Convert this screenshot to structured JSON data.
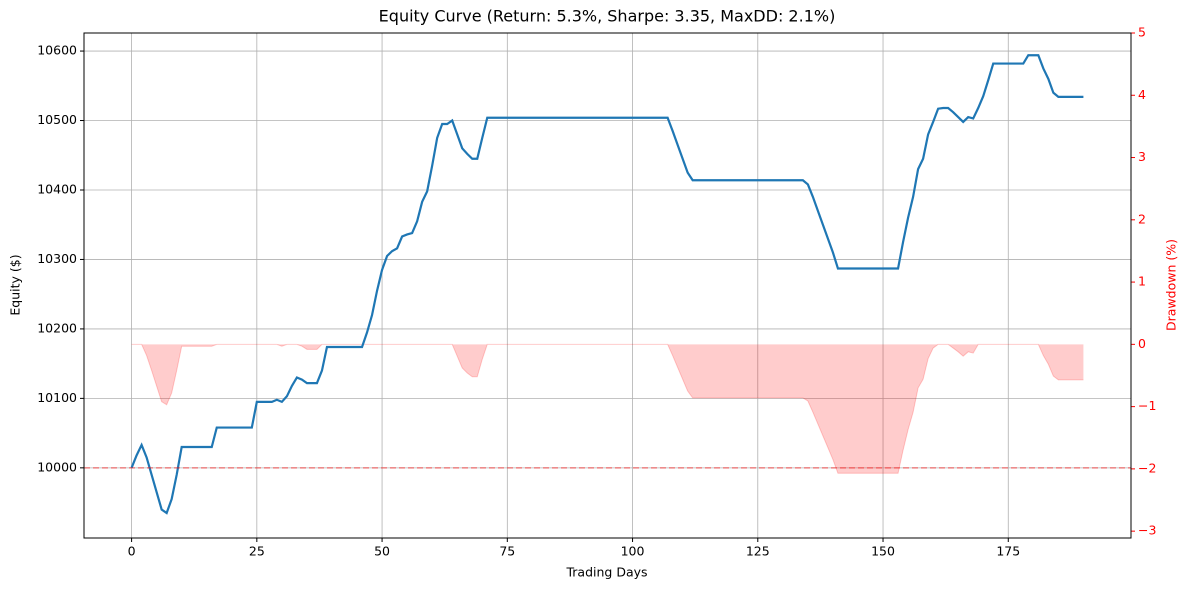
{
  "chart_data": {
    "type": "line",
    "title": "Equity Curve (Return: 5.3%, Sharpe: 3.35, MaxDD: 2.1%)",
    "xlabel": "Trading Days",
    "ylabel": "Equity ($)",
    "y2label": "Drawdown (%)",
    "x": [
      0,
      1,
      2,
      3,
      4,
      5,
      6,
      7,
      8,
      9,
      10,
      11,
      12,
      13,
      14,
      15,
      16,
      17,
      18,
      19,
      20,
      21,
      22,
      23,
      24,
      25,
      26,
      27,
      28,
      29,
      30,
      31,
      32,
      33,
      34,
      35,
      36,
      37,
      38,
      39,
      40,
      41,
      42,
      43,
      44,
      45,
      46,
      47,
      48,
      49,
      50,
      51,
      52,
      53,
      54,
      55,
      56,
      57,
      58,
      59,
      60,
      61,
      62,
      63,
      64,
      65,
      66,
      67,
      68,
      69,
      70,
      71,
      72,
      73,
      74,
      75,
      76,
      77,
      78,
      79,
      80,
      81,
      82,
      83,
      84,
      85,
      86,
      87,
      88,
      89,
      90,
      91,
      92,
      93,
      94,
      95,
      96,
      97,
      98,
      99,
      100,
      101,
      102,
      103,
      104,
      105,
      106,
      107,
      108,
      109,
      110,
      111,
      112,
      113,
      114,
      115,
      116,
      117,
      118,
      119,
      120,
      121,
      122,
      123,
      124,
      125,
      126,
      127,
      128,
      129,
      130,
      131,
      132,
      133,
      134,
      135,
      136,
      137,
      138,
      139,
      140,
      141,
      142,
      143,
      144,
      145,
      146,
      147,
      148,
      149,
      150,
      151,
      152,
      153,
      154,
      155,
      156,
      157,
      158,
      159,
      160,
      161,
      162,
      163,
      164,
      165,
      166,
      167,
      168,
      169,
      170,
      171,
      172,
      173,
      174,
      175,
      176,
      177,
      178,
      179,
      180,
      181,
      182,
      183,
      184,
      185,
      186,
      187,
      188,
      189,
      190
    ],
    "series": [
      {
        "color": "#1f77b4",
        "values": [
          10000,
          10018,
          10033,
          10015,
          9990,
          9965,
          9940,
          9935,
          9955,
          9990,
          10030,
          10030,
          10030,
          10030,
          10030,
          10030,
          10030,
          10058,
          10058,
          10058,
          10058,
          10058,
          10058,
          10058,
          10058,
          10095,
          10095,
          10095,
          10095,
          10098,
          10095,
          10103,
          10118,
          10130,
          10127,
          10122,
          10122,
          10122,
          10140,
          10174,
          10174,
          10174,
          10174,
          10174,
          10174,
          10174,
          10174,
          10195,
          10220,
          10255,
          10285,
          10305,
          10312,
          10316,
          10333,
          10336,
          10338,
          10355,
          10383,
          10398,
          10435,
          10475,
          10495,
          10495,
          10500,
          10480,
          10460,
          10452,
          10445,
          10445,
          10475,
          10504,
          10504,
          10504,
          10504,
          10504,
          10504,
          10504,
          10504,
          10504,
          10504,
          10504,
          10504,
          10504,
          10504,
          10504,
          10504,
          10504,
          10504,
          10504,
          10504,
          10504,
          10504,
          10504,
          10504,
          10504,
          10504,
          10504,
          10504,
          10504,
          10504,
          10504,
          10504,
          10504,
          10504,
          10504,
          10504,
          10504,
          10485,
          10465,
          10445,
          10425,
          10414,
          10414,
          10414,
          10414,
          10414,
          10414,
          10414,
          10414,
          10414,
          10414,
          10414,
          10414,
          10414,
          10414,
          10414,
          10414,
          10414,
          10414,
          10414,
          10414,
          10414,
          10414,
          10414,
          10408,
          10390,
          10370,
          10350,
          10330,
          10310,
          10287,
          10287,
          10287,
          10287,
          10287,
          10287,
          10287,
          10287,
          10287,
          10287,
          10287,
          10287,
          10287,
          10325,
          10360,
          10390,
          10430,
          10445,
          10480,
          10498,
          10517,
          10518,
          10518,
          10512,
          10505,
          10498,
          10505,
          10503,
          10518,
          10535,
          10558,
          10582,
          10582,
          10582,
          10582,
          10582,
          10582,
          10582,
          10594,
          10594,
          10594,
          10575,
          10560,
          10540,
          10534,
          10534,
          10534,
          10534,
          10534,
          10534
        ]
      },
      {
        "color": "#ff0000",
        "axis": "y2",
        "fill": true,
        "values": [
          0,
          0,
          0,
          -0.18,
          -0.42,
          -0.67,
          -0.92,
          -0.97,
          -0.78,
          -0.42,
          -0.03,
          -0.03,
          -0.03,
          -0.03,
          -0.03,
          -0.03,
          -0.03,
          0,
          0,
          0,
          0,
          0,
          0,
          0,
          0,
          0,
          0,
          0,
          0,
          0,
          -0.03,
          0,
          0,
          0,
          -0.03,
          -0.08,
          -0.08,
          -0.08,
          0,
          0,
          0,
          0,
          0,
          0,
          0,
          0,
          0,
          0,
          0,
          0,
          0,
          0,
          0,
          0,
          0,
          0,
          0,
          0,
          0,
          0,
          0,
          0,
          0,
          0,
          0,
          -0.19,
          -0.38,
          -0.46,
          -0.52,
          -0.52,
          -0.24,
          0,
          0,
          0,
          0,
          0,
          0,
          0,
          0,
          0,
          0,
          0,
          0,
          0,
          0,
          0,
          0,
          0,
          0,
          0,
          0,
          0,
          0,
          0,
          0,
          0,
          0,
          0,
          0,
          0,
          0,
          0,
          0,
          0,
          0,
          0,
          0,
          0,
          -0.18,
          -0.37,
          -0.56,
          -0.75,
          -0.86,
          -0.86,
          -0.86,
          -0.86,
          -0.86,
          -0.86,
          -0.86,
          -0.86,
          -0.86,
          -0.86,
          -0.86,
          -0.86,
          -0.86,
          -0.86,
          -0.86,
          -0.86,
          -0.86,
          -0.86,
          -0.86,
          -0.86,
          -0.86,
          -0.86,
          -0.86,
          -0.91,
          -1.09,
          -1.28,
          -1.47,
          -1.66,
          -1.85,
          -2.07,
          -2.07,
          -2.07,
          -2.07,
          -2.07,
          -2.07,
          -2.07,
          -2.07,
          -2.07,
          -2.07,
          -2.07,
          -2.07,
          -2.07,
          -1.7,
          -1.37,
          -1.09,
          -0.7,
          -0.56,
          -0.23,
          -0.06,
          0,
          0,
          0,
          -0.06,
          -0.12,
          -0.19,
          -0.12,
          -0.14,
          0,
          0,
          0,
          0,
          0,
          0,
          0,
          0,
          0,
          0,
          0,
          0,
          0,
          -0.18,
          -0.32,
          -0.51,
          -0.57,
          -0.57,
          -0.57,
          -0.57,
          -0.57,
          -0.57
        ]
      }
    ],
    "xlim": [
      -9.5,
      199.5
    ],
    "xticks": [
      0,
      25,
      50,
      75,
      100,
      125,
      150,
      175
    ],
    "ylim": [
      9899,
      10626
    ],
    "yticks": [
      10000,
      10100,
      10200,
      10300,
      10400,
      10500,
      10600
    ],
    "y2lim": [
      -3.11,
      5
    ],
    "y2ticks": [
      {
        "value": -3,
        "label": "−3"
      },
      {
        "value": -2,
        "label": "−2"
      },
      {
        "value": -1,
        "label": "−1"
      },
      0,
      1,
      2,
      3,
      4,
      5
    ],
    "y2color": "#ff0000",
    "reference_line": {
      "value": 10000,
      "color": "#ff0000"
    },
    "grid": true
  }
}
